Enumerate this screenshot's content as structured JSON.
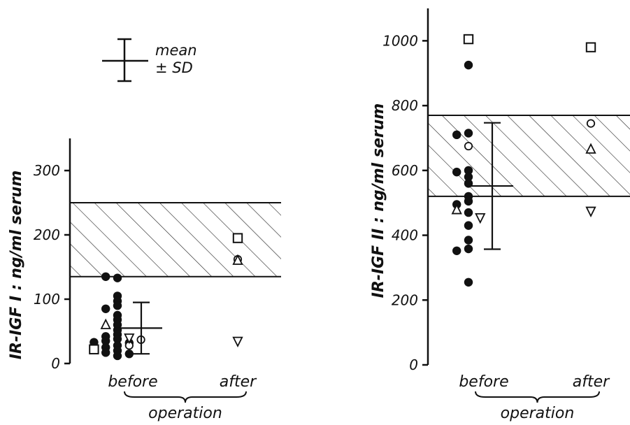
{
  "legend": {
    "line1": "mean",
    "line2": "± SD"
  },
  "chart_data": [
    {
      "type": "scatter",
      "ylabel": "IR-IGF I : ng/ml serum",
      "ylim": [
        0,
        350
      ],
      "yticks": [
        "0",
        "100",
        "200",
        "300"
      ],
      "ytick_values": [
        0,
        100,
        200,
        300
      ],
      "categories": [
        "before",
        "after"
      ],
      "group_label": "operation",
      "normal_range": [
        135,
        250
      ],
      "mean_sd": {
        "category": "before",
        "mean": 55,
        "sd": 40
      },
      "series": [
        {
          "marker": "filled-circle",
          "points": [
            {
              "x": "before",
              "y": 133
            },
            {
              "x": "before",
              "y": 135
            },
            {
              "x": "before",
              "y": 105
            },
            {
              "x": "before",
              "y": 97
            },
            {
              "x": "before",
              "y": 90
            },
            {
              "x": "before",
              "y": 85
            },
            {
              "x": "before",
              "y": 75
            },
            {
              "x": "before",
              "y": 68
            },
            {
              "x": "before",
              "y": 60
            },
            {
              "x": "before",
              "y": 52
            },
            {
              "x": "before",
              "y": 45
            },
            {
              "x": "before",
              "y": 42
            },
            {
              "x": "before",
              "y": 38
            },
            {
              "x": "before",
              "y": 35
            },
            {
              "x": "before",
              "y": 32
            },
            {
              "x": "before",
              "y": 33
            },
            {
              "x": "before",
              "y": 28
            },
            {
              "x": "before",
              "y": 25
            },
            {
              "x": "before",
              "y": 20
            },
            {
              "x": "before",
              "y": 17
            },
            {
              "x": "before",
              "y": 15
            },
            {
              "x": "before",
              "y": 12
            }
          ]
        },
        {
          "marker": "open-circle",
          "points": [
            {
              "x": "before",
              "y": 37
            },
            {
              "x": "before",
              "y": 28
            },
            {
              "x": "after",
              "y": 162
            }
          ]
        },
        {
          "marker": "open-square",
          "points": [
            {
              "x": "before",
              "y": 22
            },
            {
              "x": "after",
              "y": 195
            }
          ]
        },
        {
          "marker": "open-triangle",
          "points": [
            {
              "x": "before",
              "y": 60
            },
            {
              "x": "after",
              "y": 160
            }
          ]
        },
        {
          "marker": "open-triangle-down",
          "points": [
            {
              "x": "before",
              "y": 40
            },
            {
              "x": "after",
              "y": 35
            }
          ]
        }
      ]
    },
    {
      "type": "scatter",
      "ylabel": "IR-IGF II : ng/ml serum",
      "ylim": [
        0,
        1100
      ],
      "yticks": [
        "0",
        "200",
        "400",
        "600",
        "800",
        "1000"
      ],
      "ytick_values": [
        0,
        200,
        400,
        600,
        800,
        1000
      ],
      "categories": [
        "before",
        "after"
      ],
      "group_label": "operation",
      "normal_range": [
        520,
        770
      ],
      "mean_sd": {
        "category": "before",
        "mean": 552,
        "sd": 195
      },
      "series": [
        {
          "marker": "filled-circle",
          "points": [
            {
              "x": "before",
              "y": 925
            },
            {
              "x": "before",
              "y": 715
            },
            {
              "x": "before",
              "y": 710
            },
            {
              "x": "before",
              "y": 600
            },
            {
              "x": "before",
              "y": 595
            },
            {
              "x": "before",
              "y": 580
            },
            {
              "x": "before",
              "y": 560
            },
            {
              "x": "before",
              "y": 520
            },
            {
              "x": "before",
              "y": 505
            },
            {
              "x": "before",
              "y": 495
            },
            {
              "x": "before",
              "y": 470
            },
            {
              "x": "before",
              "y": 430
            },
            {
              "x": "before",
              "y": 385
            },
            {
              "x": "before",
              "y": 358
            },
            {
              "x": "before",
              "y": 352
            },
            {
              "x": "before",
              "y": 255
            }
          ]
        },
        {
          "marker": "open-circle",
          "points": [
            {
              "x": "before",
              "y": 675
            },
            {
              "x": "after",
              "y": 745
            }
          ]
        },
        {
          "marker": "open-square",
          "points": [
            {
              "x": "before",
              "y": 1005
            },
            {
              "x": "after",
              "y": 980
            }
          ]
        },
        {
          "marker": "open-triangle",
          "points": [
            {
              "x": "before",
              "y": 478
            },
            {
              "x": "after",
              "y": 665
            }
          ]
        },
        {
          "marker": "open-triangle-down",
          "points": [
            {
              "x": "before",
              "y": 455
            },
            {
              "x": "after",
              "y": 475
            }
          ]
        }
      ]
    }
  ]
}
